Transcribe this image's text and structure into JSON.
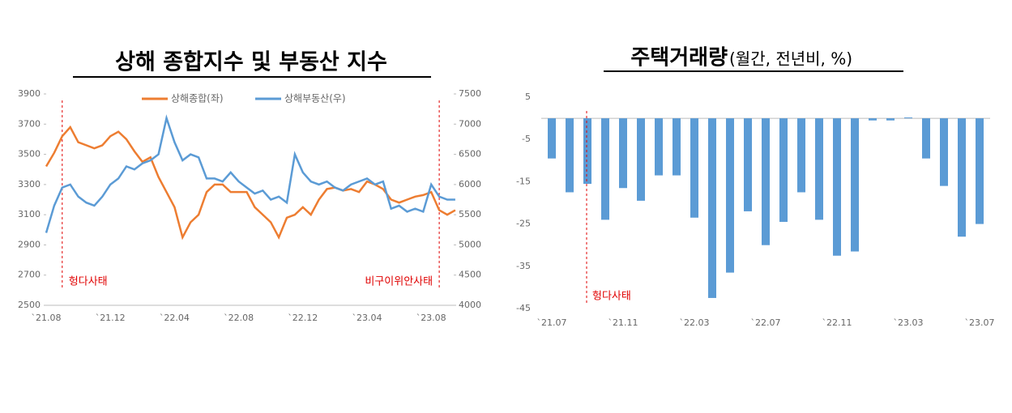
{
  "chart_data": [
    {
      "type": "line",
      "title": "상해 종합지수 및 부동산 지수",
      "categories": [
        "`21.08",
        null,
        null,
        null,
        null,
        null,
        null,
        null,
        "`21.12",
        null,
        null,
        null,
        null,
        null,
        null,
        null,
        "`22.04",
        null,
        null,
        null,
        null,
        null,
        null,
        null,
        "`22.08",
        null,
        null,
        null,
        null,
        null,
        null,
        null,
        "`22.12",
        null,
        null,
        null,
        null,
        null,
        null,
        null,
        "`23.04",
        null,
        null,
        null,
        null,
        null,
        null,
        null,
        "`23.08",
        null,
        null,
        null
      ],
      "series": [
        {
          "name": "상해종합(좌)",
          "color": "#ed7d31",
          "axis": "y",
          "values": [
            3420,
            3510,
            3620,
            3680,
            3580,
            3560,
            3540,
            3560,
            3620,
            3650,
            3600,
            3520,
            3450,
            3480,
            3350,
            3250,
            3150,
            2950,
            3050,
            3100,
            3250,
            3300,
            3300,
            3250,
            3250,
            3250,
            3150,
            3100,
            3050,
            2950,
            3080,
            3100,
            3150,
            3100,
            3200,
            3270,
            3280,
            3260,
            3270,
            3250,
            3320,
            3300,
            3270,
            3200,
            3180,
            3200,
            3220,
            3230,
            3250,
            3130,
            3100,
            3130
          ]
        },
        {
          "name": "상해부동산(우)",
          "color": "#5b9bd5",
          "axis": "y2",
          "values": [
            5200,
            5650,
            5950,
            6000,
            5800,
            5700,
            5650,
            5800,
            6000,
            6100,
            6300,
            6250,
            6350,
            6400,
            6500,
            7100,
            6700,
            6400,
            6500,
            6450,
            6100,
            6100,
            6050,
            6200,
            6050,
            5950,
            5850,
            5900,
            5750,
            5800,
            5700,
            6500,
            6200,
            6050,
            6000,
            6050,
            5950,
            5900,
            6000,
            6050,
            6100,
            6000,
            6050,
            5600,
            5650,
            5550,
            5600,
            5550,
            6000,
            5800,
            5750,
            5750
          ]
        }
      ],
      "ylim": [
        2500,
        3900
      ],
      "yticks": [
        2500,
        2700,
        2900,
        3100,
        3300,
        3500,
        3700,
        3900
      ],
      "y2lim": [
        4000,
        7500
      ],
      "y2ticks": [
        4000,
        4500,
        5000,
        5500,
        6000,
        6500,
        7000,
        7500
      ],
      "legend": "top",
      "annotations": [
        "헝다사태",
        "비구이위안사태"
      ]
    },
    {
      "type": "bar",
      "title": "주택거래량",
      "subtitle": "(월간, 전년비, %)",
      "categories": [
        "`21.07",
        null,
        null,
        null,
        "`21.11",
        null,
        null,
        null,
        "`22.03",
        null,
        null,
        null,
        "`22.07",
        null,
        null,
        null,
        "`22.11",
        null,
        null,
        null,
        "`23.03",
        null,
        null,
        null,
        "`23.07"
      ],
      "values": [
        -9.5,
        -17.5,
        -15.5,
        -24,
        -16.5,
        -19.5,
        -13.5,
        -13.5,
        -23.5,
        -42.5,
        -36.5,
        -22,
        -30,
        -24.5,
        -17.5,
        -24,
        -32.5,
        -31.5,
        -0.5,
        -0.5,
        0.2,
        -9.5,
        -16,
        -28,
        -25
      ],
      "color": "#5b9bd5",
      "ylim": [
        -45,
        5
      ],
      "yticks": [
        -45,
        -35,
        -25,
        -15,
        -5,
        5
      ],
      "annotations": [
        "헝다사태"
      ]
    }
  ]
}
